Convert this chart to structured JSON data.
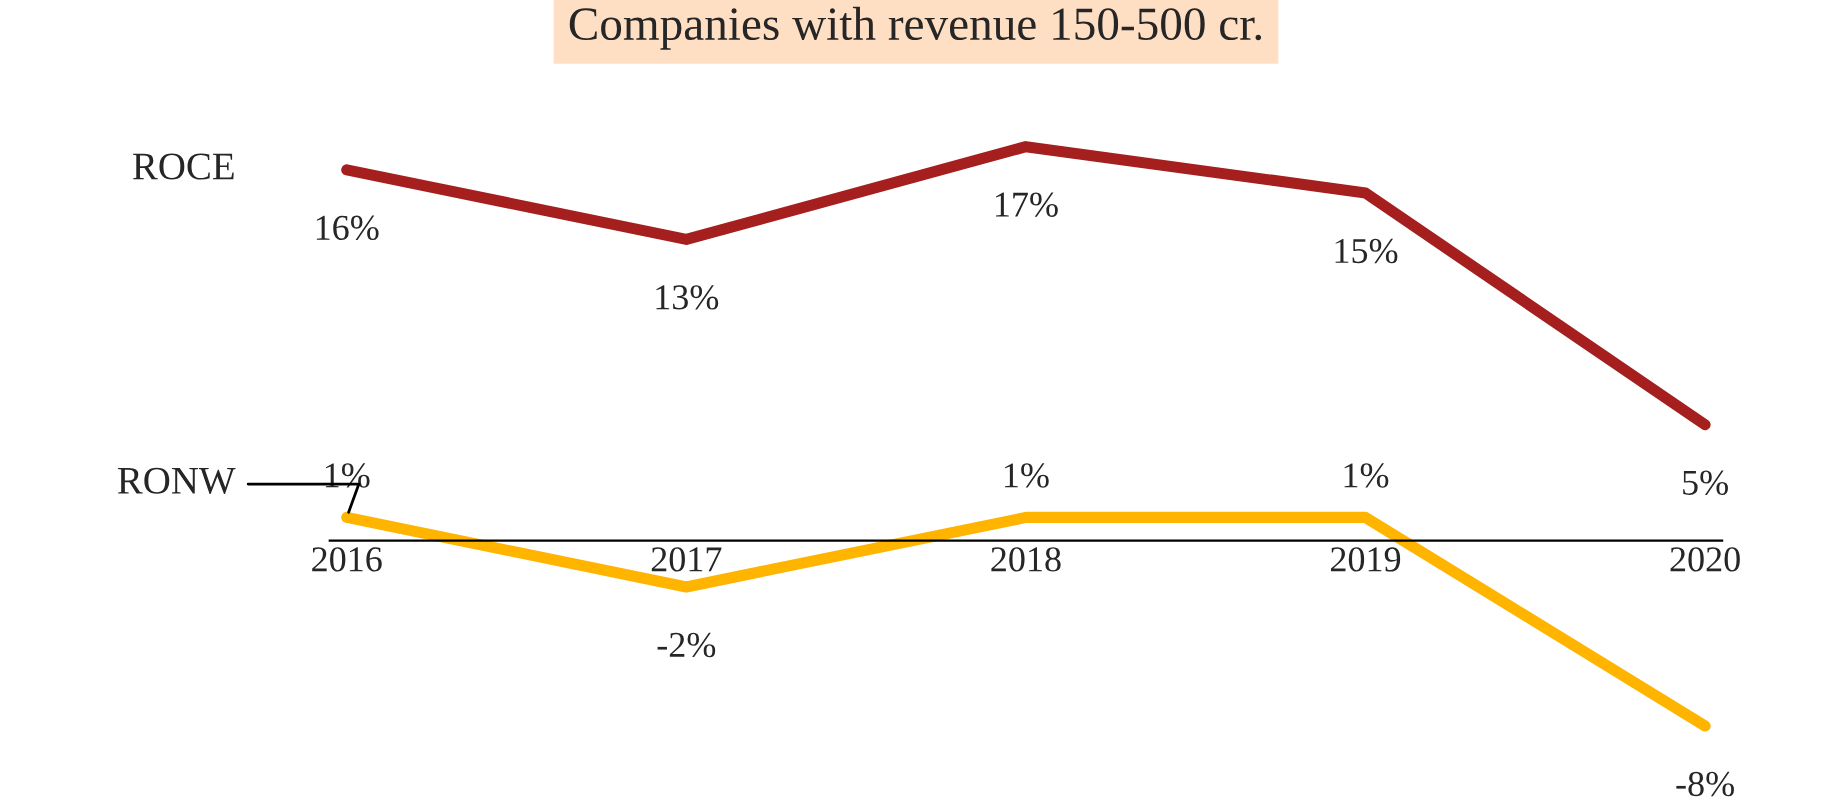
{
  "chart_data": {
    "type": "line",
    "title": "Companies with revenue 150-500 cr.",
    "categories": [
      "2016",
      "2017",
      "2018",
      "2019",
      "2020"
    ],
    "series": [
      {
        "name": "ROCE",
        "color": "#a51f1f",
        "values": [
          16,
          13,
          17,
          15,
          5
        ],
        "value_labels": [
          "16%",
          "13%",
          "17%",
          "15%",
          "5%"
        ]
      },
      {
        "name": "RONW",
        "color": "#ffb500",
        "values": [
          1,
          -2,
          1,
          1,
          -8
        ],
        "value_labels": [
          "1%",
          "-2%",
          "1%",
          "1%",
          "-8%"
        ]
      }
    ],
    "grid": false,
    "legend": false,
    "marker": "none",
    "line_style": "solid"
  }
}
